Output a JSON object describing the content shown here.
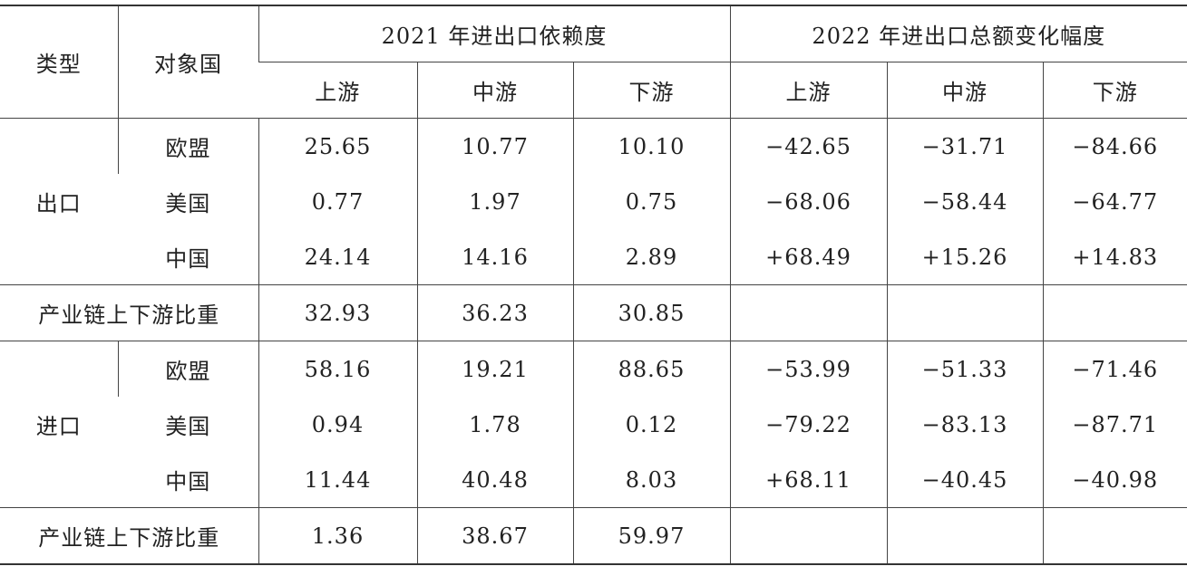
{
  "header": {
    "type": "类型",
    "partner": "对象国",
    "group1": "2021 年进出口依赖度",
    "group2": "2022 年进出口总额变化幅度",
    "sub": [
      "上游",
      "中游",
      "下游",
      "上游",
      "中游",
      "下游"
    ]
  },
  "sections": [
    {
      "type": "出口",
      "rows": [
        {
          "partner": "欧盟",
          "values": [
            "25.65",
            "10.77",
            "10.10",
            "−42.65",
            "−31.71",
            "−84.66"
          ]
        },
        {
          "partner": "美国",
          "values": [
            "0.77",
            "1.97",
            "0.75",
            "−68.06",
            "−58.44",
            "−64.77"
          ]
        },
        {
          "partner": "中国",
          "values": [
            "24.14",
            "14.16",
            "2.89",
            "+68.49",
            "+15.26",
            "+14.83"
          ]
        }
      ],
      "share": {
        "label": "产业链上下游比重",
        "values": [
          "32.93",
          "36.23",
          "30.85"
        ]
      }
    },
    {
      "type": "进口",
      "rows": [
        {
          "partner": "欧盟",
          "values": [
            "58.16",
            "19.21",
            "88.65",
            "−53.99",
            "−51.33",
            "−71.46"
          ]
        },
        {
          "partner": "美国",
          "values": [
            "0.94",
            "1.78",
            "0.12",
            "−79.22",
            "−83.13",
            "−87.71"
          ]
        },
        {
          "partner": "中国",
          "values": [
            "11.44",
            "40.48",
            "8.03",
            "+68.11",
            "−40.45",
            "−40.98"
          ]
        }
      ],
      "share": {
        "label": "产业链上下游比重",
        "values": [
          "1.36",
          "38.67",
          "59.97"
        ]
      }
    }
  ]
}
